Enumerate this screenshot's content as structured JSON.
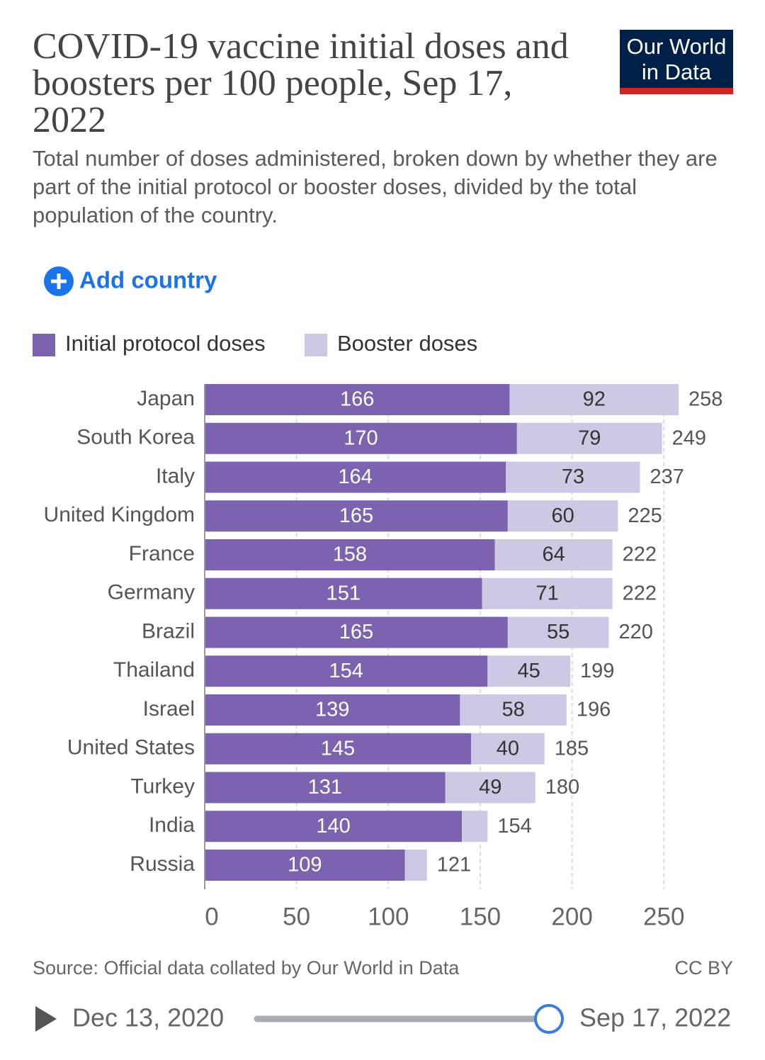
{
  "chart_data": {
    "type": "stacked-bar-horizontal",
    "title": "COVID-19 vaccine initial doses and boosters per 100 people, Sep 17, 2022",
    "subtitle": "Total number of doses administered, broken down by whether they are part of the initial protocol or booster doses, divided by the total population of the country.",
    "categories": [
      "Japan",
      "South Korea",
      "Italy",
      "United Kingdom",
      "France",
      "Germany",
      "Brazil",
      "Thailand",
      "Israel",
      "United States",
      "Turkey",
      "India",
      "Russia"
    ],
    "series": [
      {
        "name": "Initial protocol doses",
        "color": "#7b63b0",
        "values": [
          166,
          170,
          164,
          165,
          158,
          151,
          165,
          154,
          139,
          145,
          131,
          140,
          109
        ]
      },
      {
        "name": "Booster doses",
        "color": "#cdc8e3",
        "values": [
          92,
          79,
          73,
          60,
          64,
          71,
          55,
          45,
          58,
          40,
          49,
          14,
          12
        ],
        "value_labels": [
          "92",
          "79",
          "73",
          "60",
          "64",
          "71",
          "55",
          "45",
          "58",
          "40",
          "49",
          null,
          null
        ]
      }
    ],
    "totals": [
      258,
      249,
      237,
      225,
      222,
      222,
      220,
      199,
      196,
      185,
      180,
      154,
      121
    ],
    "xlim": [
      0,
      280
    ],
    "xticks": [
      0,
      50,
      100,
      150,
      200,
      250
    ],
    "grid": true,
    "source": "Source: Official data collated by Our World in Data",
    "license": "CC BY"
  },
  "ui": {
    "logo": "Our World in Data",
    "add_country": "Add country",
    "timeline_start": "Dec 13, 2020",
    "timeline_end": "Sep 17, 2022"
  }
}
